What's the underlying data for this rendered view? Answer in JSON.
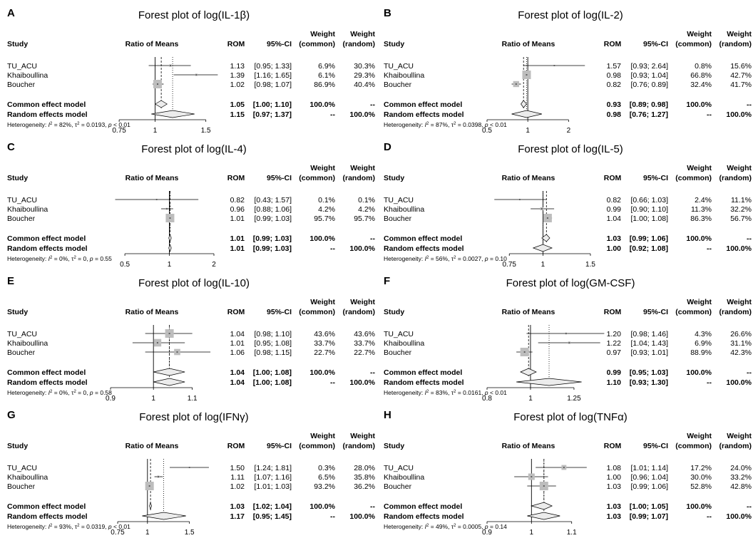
{
  "header": {
    "study": "Study",
    "ratio": "Ratio of Means",
    "rom": "ROM",
    "ci": "95%-CI",
    "weight": "Weight",
    "common_paren": "(common)",
    "random_paren": "(random)"
  },
  "labels": {
    "common_model": "Common effect model",
    "random_model": "Random effects model"
  },
  "chart_data": [
    {
      "type": "forest",
      "letter": "A",
      "title": "Forest plot of log(IL-1β)",
      "xticks": [
        0.75,
        1,
        1.5
      ],
      "xtick_labels": [
        "0.75",
        "1",
        "1.5"
      ],
      "xlim": [
        0.7,
        1.6
      ],
      "log_scale": true,
      "studies": [
        {
          "name": "TU_ACU",
          "rom": 1.13,
          "lo": 0.95,
          "hi": 1.33,
          "rom_text": "1.13",
          "ci_text": "[0.95; 1.33]",
          "w_common": "6.9%",
          "w_random": "30.3%",
          "w": 6.9
        },
        {
          "name": "Khaiboullina",
          "rom": 1.39,
          "lo": 1.16,
          "hi": 1.65,
          "rom_text": "1.39",
          "ci_text": "[1.16; 1.65]",
          "w_common": "6.1%",
          "w_random": "29.3%",
          "w": 6.1
        },
        {
          "name": "Boucher",
          "rom": 1.02,
          "lo": 0.98,
          "hi": 1.07,
          "rom_text": "1.02",
          "ci_text": "[0.98; 1.07]",
          "w_common": "86.9%",
          "w_random": "40.4%",
          "w": 86.9
        }
      ],
      "common": {
        "rom": 1.05,
        "lo": 1.0,
        "hi": 1.1,
        "rom_text": "1.05",
        "ci_text": "[1.00; 1.10]",
        "w_common": "100.0%",
        "w_random": "--"
      },
      "random": {
        "rom": 1.15,
        "lo": 0.97,
        "hi": 1.37,
        "rom_text": "1.15",
        "ci_text": "[0.97; 1.37]",
        "w_common": "--",
        "w_random": "100.0%"
      },
      "het": {
        "i2": "82%",
        "tau2": "0.0193",
        "p": "< 0.01",
        "p_op": ""
      }
    },
    {
      "type": "forest",
      "letter": "B",
      "title": "Forest plot of log(IL-2)",
      "xticks": [
        0.5,
        1,
        2
      ],
      "xtick_labels": [
        "0.5",
        "1",
        "2"
      ],
      "xlim": [
        0.5,
        2.9
      ],
      "log_scale": true,
      "studies": [
        {
          "name": "TU_ACU",
          "rom": 1.57,
          "lo": 0.93,
          "hi": 2.64,
          "rom_text": "1.57",
          "ci_text": "[0.93; 2.64]",
          "w_common": "0.8%",
          "w_random": "15.6%",
          "w": 0.8
        },
        {
          "name": "Khaiboullina",
          "rom": 0.98,
          "lo": 0.93,
          "hi": 1.04,
          "rom_text": "0.98",
          "ci_text": "[0.93; 1.04]",
          "w_common": "66.8%",
          "w_random": "42.7%",
          "w": 66.8
        },
        {
          "name": "Boucher",
          "rom": 0.82,
          "lo": 0.76,
          "hi": 0.89,
          "rom_text": "0.82",
          "ci_text": "[0.76; 0.89]",
          "w_common": "32.4%",
          "w_random": "41.7%",
          "w": 32.4
        }
      ],
      "common": {
        "rom": 0.93,
        "lo": 0.89,
        "hi": 0.98,
        "rom_text": "0.93",
        "ci_text": "[0.89; 0.98]",
        "w_common": "100.0%",
        "w_random": "--"
      },
      "random": {
        "rom": 0.98,
        "lo": 0.76,
        "hi": 1.27,
        "rom_text": "0.98",
        "ci_text": "[0.76; 1.27]",
        "w_common": "--",
        "w_random": "100.0%"
      },
      "het": {
        "i2": "87%",
        "tau2": "0.0398",
        "p": "< 0.01",
        "p_op": ""
      }
    },
    {
      "type": "forest",
      "letter": "C",
      "title": "Forest plot of log(IL-4)",
      "xticks": [
        0.5,
        1,
        2
      ],
      "xtick_labels": [
        "0.5",
        "1",
        "2"
      ],
      "xlim": [
        0.4,
        2.0
      ],
      "log_scale": true,
      "studies": [
        {
          "name": "TU_ACU",
          "rom": 0.82,
          "lo": 0.43,
          "hi": 1.57,
          "rom_text": "0.82",
          "ci_text": "[0.43; 1.57]",
          "w_common": "0.1%",
          "w_random": "0.1%",
          "w": 0.1
        },
        {
          "name": "Khaiboullina",
          "rom": 0.96,
          "lo": 0.88,
          "hi": 1.06,
          "rom_text": "0.96",
          "ci_text": "[0.88; 1.06]",
          "w_common": "4.2%",
          "w_random": "4.2%",
          "w": 4.2
        },
        {
          "name": "Boucher",
          "rom": 1.01,
          "lo": 0.99,
          "hi": 1.03,
          "rom_text": "1.01",
          "ci_text": "[0.99; 1.03]",
          "w_common": "95.7%",
          "w_random": "95.7%",
          "w": 95.7
        }
      ],
      "common": {
        "rom": 1.01,
        "lo": 0.99,
        "hi": 1.03,
        "rom_text": "1.01",
        "ci_text": "[0.99; 1.03]",
        "w_common": "100.0%",
        "w_random": "--"
      },
      "random": {
        "rom": 1.01,
        "lo": 0.99,
        "hi": 1.03,
        "rom_text": "1.01",
        "ci_text": "[0.99; 1.03]",
        "w_common": "--",
        "w_random": "100.0%"
      },
      "het": {
        "i2": "0%",
        "tau2": "0",
        "p": "0.55",
        "p_op": "= "
      }
    },
    {
      "type": "forest",
      "letter": "D",
      "title": "Forest plot of log(IL-5)",
      "xticks": [
        0.75,
        1,
        1.5
      ],
      "xtick_labels": [
        "0.75",
        "1",
        "1.5"
      ],
      "xlim": [
        0.62,
        1.5
      ],
      "log_scale": true,
      "studies": [
        {
          "name": "TU_ACU",
          "rom": 0.82,
          "lo": 0.66,
          "hi": 1.03,
          "rom_text": "0.82",
          "ci_text": "[0.66; 1.03]",
          "w_common": "2.4%",
          "w_random": "11.1%",
          "w": 2.4
        },
        {
          "name": "Khaiboullina",
          "rom": 0.99,
          "lo": 0.9,
          "hi": 1.1,
          "rom_text": "0.99",
          "ci_text": "[0.90; 1.10]",
          "w_common": "11.3%",
          "w_random": "32.2%",
          "w": 11.3
        },
        {
          "name": "Boucher",
          "rom": 1.04,
          "lo": 1.0,
          "hi": 1.08,
          "rom_text": "1.04",
          "ci_text": "[1.00; 1.08]",
          "w_common": "86.3%",
          "w_random": "56.7%",
          "w": 86.3
        }
      ],
      "common": {
        "rom": 1.03,
        "lo": 0.99,
        "hi": 1.06,
        "rom_text": "1.03",
        "ci_text": "[0.99; 1.06]",
        "w_common": "100.0%",
        "w_random": "--"
      },
      "random": {
        "rom": 1.0,
        "lo": 0.92,
        "hi": 1.08,
        "rom_text": "1.00",
        "ci_text": "[0.92; 1.08]",
        "w_common": "--",
        "w_random": "100.0%"
      },
      "het": {
        "i2": "56%",
        "tau2": "0.0027",
        "p": "0.10",
        "p_op": "= "
      }
    },
    {
      "type": "forest",
      "letter": "E",
      "title": "Forest plot of log(IL-10)",
      "xticks": [
        0.9,
        1,
        1.1
      ],
      "xtick_labels": [
        "0.9",
        "1",
        "1.1"
      ],
      "xlim": [
        0.9,
        1.16
      ],
      "log_scale": true,
      "studies": [
        {
          "name": "TU_ACU",
          "rom": 1.04,
          "lo": 0.98,
          "hi": 1.1,
          "rom_text": "1.04",
          "ci_text": "[0.98; 1.10]",
          "w_common": "43.6%",
          "w_random": "43.6%",
          "w": 43.6
        },
        {
          "name": "Khaiboullina",
          "rom": 1.01,
          "lo": 0.95,
          "hi": 1.08,
          "rom_text": "1.01",
          "ci_text": "[0.95; 1.08]",
          "w_common": "33.7%",
          "w_random": "33.7%",
          "w": 33.7
        },
        {
          "name": "Boucher",
          "rom": 1.06,
          "lo": 0.98,
          "hi": 1.15,
          "rom_text": "1.06",
          "ci_text": "[0.98; 1.15]",
          "w_common": "22.7%",
          "w_random": "22.7%",
          "w": 22.7
        }
      ],
      "common": {
        "rom": 1.04,
        "lo": 1.0,
        "hi": 1.08,
        "rom_text": "1.04",
        "ci_text": "[1.00; 1.08]",
        "w_common": "100.0%",
        "w_random": "--"
      },
      "random": {
        "rom": 1.04,
        "lo": 1.0,
        "hi": 1.08,
        "rom_text": "1.04",
        "ci_text": "[1.00; 1.08]",
        "w_common": "--",
        "w_random": "100.0%"
      },
      "het": {
        "i2": "0%",
        "tau2": "0",
        "p": "0.58",
        "p_op": "= "
      }
    },
    {
      "type": "forest",
      "letter": "F",
      "title": "Forest plot of log(GM-CSF)",
      "xticks": [
        0.8,
        1,
        1.25
      ],
      "xtick_labels": [
        "0.8",
        "1",
        "1.25"
      ],
      "xlim": [
        0.8,
        1.36
      ],
      "log_scale": true,
      "studies": [
        {
          "name": "TU_ACU",
          "rom": 1.2,
          "lo": 0.98,
          "hi": 1.46,
          "rom_text": "1.20",
          "ci_text": "[0.98; 1.46]",
          "w_common": "4.3%",
          "w_random": "26.6%",
          "w": 4.3
        },
        {
          "name": "Khaiboullina",
          "rom": 1.22,
          "lo": 1.04,
          "hi": 1.43,
          "rom_text": "1.22",
          "ci_text": "[1.04; 1.43]",
          "w_common": "6.9%",
          "w_random": "31.1%",
          "w": 6.9
        },
        {
          "name": "Boucher",
          "rom": 0.97,
          "lo": 0.93,
          "hi": 1.01,
          "rom_text": "0.97",
          "ci_text": "[0.93; 1.01]",
          "w_common": "88.9%",
          "w_random": "42.3%",
          "w": 88.9
        }
      ],
      "common": {
        "rom": 0.99,
        "lo": 0.95,
        "hi": 1.03,
        "rom_text": "0.99",
        "ci_text": "[0.95; 1.03]",
        "w_common": "100.0%",
        "w_random": "--"
      },
      "random": {
        "rom": 1.1,
        "lo": 0.93,
        "hi": 1.3,
        "rom_text": "1.10",
        "ci_text": "[0.93; 1.30]",
        "w_common": "--",
        "w_random": "100.0%"
      },
      "het": {
        "i2": "83%",
        "tau2": "0.0161",
        "p": "< 0.01",
        "p_op": ""
      }
    },
    {
      "type": "forest",
      "letter": "G",
      "title": "Forest plot of log(IFNγ)",
      "xticks": [
        0.75,
        1,
        1.5
      ],
      "xtick_labels": [
        "0.75",
        "1",
        "1.5"
      ],
      "xlim": [
        0.7,
        1.9
      ],
      "log_scale": true,
      "studies": [
        {
          "name": "TU_ACU",
          "rom": 1.5,
          "lo": 1.24,
          "hi": 1.81,
          "rom_text": "1.50",
          "ci_text": "[1.24; 1.81]",
          "w_common": "0.3%",
          "w_random": "28.0%",
          "w": 0.3
        },
        {
          "name": "Khaiboullina",
          "rom": 1.11,
          "lo": 1.07,
          "hi": 1.16,
          "rom_text": "1.11",
          "ci_text": "[1.07; 1.16]",
          "w_common": "6.5%",
          "w_random": "35.8%",
          "w": 6.5
        },
        {
          "name": "Boucher",
          "rom": 1.02,
          "lo": 1.01,
          "hi": 1.03,
          "rom_text": "1.02",
          "ci_text": "[1.01; 1.03]",
          "w_common": "93.2%",
          "w_random": "36.2%",
          "w": 93.2
        }
      ],
      "common": {
        "rom": 1.03,
        "lo": 1.02,
        "hi": 1.04,
        "rom_text": "1.03",
        "ci_text": "[1.02; 1.04]",
        "w_common": "100.0%",
        "w_random": "--"
      },
      "random": {
        "rom": 1.17,
        "lo": 0.95,
        "hi": 1.45,
        "rom_text": "1.17",
        "ci_text": "[0.95; 1.45]",
        "w_common": "--",
        "w_random": "100.0%"
      },
      "het": {
        "i2": "93%",
        "tau2": "0.0319",
        "p": "< 0.01",
        "p_op": ""
      }
    },
    {
      "type": "forest",
      "letter": "H",
      "title": "Forest plot of log(TNFα)",
      "xticks": [
        0.9,
        1,
        1.1
      ],
      "xtick_labels": [
        "0.9",
        "1",
        "1.1"
      ],
      "xlim": [
        0.9,
        1.15
      ],
      "log_scale": true,
      "studies": [
        {
          "name": "TU_ACU",
          "rom": 1.08,
          "lo": 1.01,
          "hi": 1.14,
          "rom_text": "1.08",
          "ci_text": "[1.01; 1.14]",
          "w_common": "17.2%",
          "w_random": "24.0%",
          "w": 17.2
        },
        {
          "name": "Khaiboullina",
          "rom": 1.0,
          "lo": 0.96,
          "hi": 1.04,
          "rom_text": "1.00",
          "ci_text": "[0.96; 1.04]",
          "w_common": "30.0%",
          "w_random": "33.2%",
          "w": 30.0
        },
        {
          "name": "Boucher",
          "rom": 1.03,
          "lo": 0.99,
          "hi": 1.06,
          "rom_text": "1.03",
          "ci_text": "[0.99; 1.06]",
          "w_common": "52.8%",
          "w_random": "42.8%",
          "w": 52.8
        }
      ],
      "common": {
        "rom": 1.03,
        "lo": 1.0,
        "hi": 1.05,
        "rom_text": "1.03",
        "ci_text": "[1.00; 1.05]",
        "w_common": "100.0%",
        "w_random": "--"
      },
      "random": {
        "rom": 1.03,
        "lo": 0.99,
        "hi": 1.07,
        "rom_text": "1.03",
        "ci_text": "[0.99; 1.07]",
        "w_common": "--",
        "w_random": "100.0%"
      },
      "het": {
        "i2": "49%",
        "tau2": "0.0005",
        "p": "0.14",
        "p_op": "= "
      }
    }
  ],
  "colors": {
    "square": "#bdbdbd",
    "diamond": "#ececec",
    "line": "#000000"
  }
}
